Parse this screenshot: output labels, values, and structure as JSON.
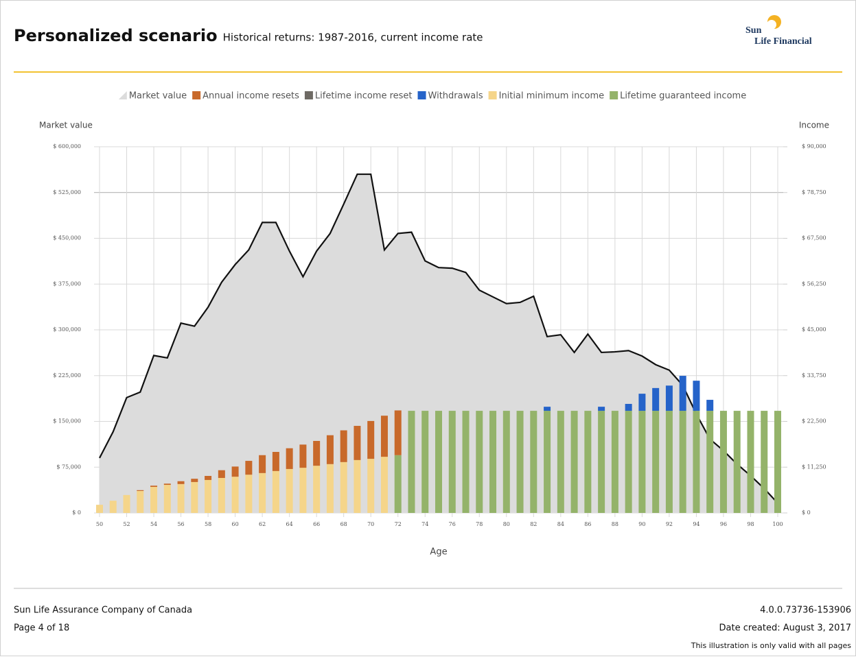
{
  "header": {
    "title": "Personalized scenario",
    "subtitle": "Historical returns: 1987-2016, current income rate",
    "logo": [
      "Sun",
      "Life Financial"
    ]
  },
  "chart_data": {
    "type": "area-bar",
    "y_label": "Market value",
    "y2_label": "Income",
    "x_label": "Age",
    "x": [
      50,
      51,
      52,
      53,
      54,
      55,
      56,
      57,
      58,
      59,
      60,
      61,
      62,
      63,
      64,
      65,
      66,
      67,
      68,
      69,
      70,
      71,
      72,
      73,
      74,
      75,
      76,
      77,
      78,
      79,
      80,
      81,
      82,
      83,
      84,
      85,
      86,
      87,
      88,
      89,
      90,
      91,
      92,
      93,
      94,
      95,
      96,
      97,
      98,
      99,
      100
    ],
    "xlim": [
      50,
      100
    ],
    "xticks": [
      50,
      52,
      54,
      56,
      58,
      60,
      62,
      64,
      66,
      68,
      70,
      72,
      74,
      76,
      78,
      80,
      82,
      84,
      86,
      88,
      90,
      92,
      94,
      96,
      98,
      100
    ],
    "ylim": [
      0,
      600000
    ],
    "yticks": [
      {
        "value": 0,
        "label": "$ 0"
      },
      {
        "value": 75000,
        "label": "$ 75,000"
      },
      {
        "value": 150000,
        "label": "$ 150,000"
      },
      {
        "value": 225000,
        "label": "$ 225,000"
      },
      {
        "value": 300000,
        "label": "$ 300,000"
      },
      {
        "value": 375000,
        "label": "$ 375,000"
      },
      {
        "value": 450000,
        "label": "$ 450,000"
      },
      {
        "value": 525000,
        "label": "$ 525,000"
      },
      {
        "value": 600000,
        "label": "$ 600,000"
      }
    ],
    "y2lim": [
      0,
      90000
    ],
    "y2ticks": [
      {
        "value": 0,
        "label": "$ 0"
      },
      {
        "value": 11250,
        "label": "$ 11,250"
      },
      {
        "value": 22500,
        "label": "$ 22,500"
      },
      {
        "value": 33750,
        "label": "$ 33,750"
      },
      {
        "value": 45000,
        "label": "$ 45,000"
      },
      {
        "value": 56250,
        "label": "$ 56,250"
      },
      {
        "value": 67500,
        "label": "$ 67,500"
      },
      {
        "value": 78750,
        "label": "$ 78,750"
      },
      {
        "value": 90000,
        "label": "$ 90,000"
      }
    ],
    "grid": true,
    "series": [
      {
        "name": "Market value",
        "color": "#dcdcdc",
        "line_color": "#111111",
        "values": [
          90000,
          133000,
          189000,
          198000,
          258000,
          254000,
          311000,
          306000,
          337000,
          378000,
          407000,
          431000,
          476000,
          476000,
          429000,
          387000,
          429000,
          458000,
          506000,
          555000,
          555000,
          431000,
          458000,
          460000,
          413000,
          402000,
          401000,
          394000,
          365000,
          354000,
          343000,
          345000,
          355000,
          289000,
          292000,
          263000,
          293000,
          263000,
          264000,
          266000,
          257000,
          243000,
          234000,
          209000,
          162000,
          121000,
          102000,
          80000,
          61000,
          40000,
          16000
        ]
      },
      {
        "name": "Annual income resets",
        "color": "#c8692a",
        "axis": "y2",
        "values": [
          null,
          null,
          null,
          200,
          300,
          300,
          700,
          800,
          1000,
          1900,
          2500,
          3400,
          4400,
          4700,
          5100,
          5700,
          6100,
          7100,
          7800,
          8400,
          9300,
          10100,
          11000,
          null,
          null,
          null,
          null,
          null,
          null,
          null,
          null,
          null,
          null,
          null,
          null,
          null,
          null,
          null,
          null,
          null,
          null,
          null,
          null,
          null,
          null,
          null,
          null,
          null,
          null,
          null,
          null
        ]
      },
      {
        "name": "Lifetime income reset",
        "color": "#6e6a64",
        "axis": "y2",
        "values": [
          null,
          null,
          null,
          null,
          null,
          null,
          null,
          null,
          null,
          null,
          null,
          null,
          null,
          null,
          null,
          null,
          null,
          null,
          null,
          null,
          null,
          null,
          null,
          null,
          null,
          null,
          null,
          null,
          null,
          null,
          null,
          null,
          null,
          null,
          null,
          null,
          null,
          null,
          null,
          null,
          null,
          null,
          null,
          null,
          null,
          null,
          null,
          null,
          null,
          null,
          null
        ]
      },
      {
        "name": "Withdrawals",
        "color": "#2563c9",
        "axis": "y2",
        "values": [
          null,
          null,
          null,
          null,
          null,
          null,
          null,
          null,
          null,
          null,
          null,
          null,
          null,
          null,
          null,
          null,
          null,
          null,
          null,
          null,
          null,
          null,
          null,
          null,
          null,
          null,
          null,
          null,
          null,
          null,
          null,
          null,
          null,
          1000,
          null,
          null,
          null,
          1000,
          null,
          1700,
          4200,
          5600,
          6200,
          8600,
          7400,
          2700,
          null,
          null,
          null,
          null,
          null
        ]
      },
      {
        "name": "Initial minimum income",
        "color": "#f5d58a",
        "axis": "y2",
        "values": [
          2000,
          3000,
          4400,
          5400,
          6400,
          6900,
          7100,
          7600,
          8100,
          8600,
          8900,
          9400,
          9800,
          10300,
          10800,
          11100,
          11600,
          12000,
          12500,
          13000,
          13300,
          13800,
          null,
          null,
          null,
          null,
          null,
          null,
          null,
          null,
          null,
          null,
          null,
          null,
          null,
          null,
          null,
          null,
          null,
          null,
          null,
          null,
          null,
          null,
          null,
          null,
          null,
          null,
          null,
          null,
          null
        ]
      },
      {
        "name": "Lifetime guaranteed income",
        "color": "#94b36a",
        "axis": "y2",
        "values": [
          null,
          null,
          null,
          null,
          null,
          null,
          null,
          null,
          null,
          null,
          null,
          null,
          null,
          null,
          null,
          null,
          null,
          null,
          null,
          null,
          null,
          null,
          14200,
          25100,
          25100,
          25100,
          25100,
          25100,
          25100,
          25100,
          25100,
          25100,
          25100,
          25100,
          25100,
          25100,
          25100,
          25100,
          25100,
          25100,
          25100,
          25100,
          25100,
          25100,
          25100,
          25100,
          25100,
          25100,
          25100,
          25100,
          25100
        ]
      }
    ]
  },
  "footer": {
    "company": "Sun Life Assurance Company of Canada",
    "page": "Page 4 of 18",
    "version": "4.0.0.73736-153906",
    "date": "Date created: August 3, 2017",
    "note": "This illustration is only valid with all pages"
  }
}
